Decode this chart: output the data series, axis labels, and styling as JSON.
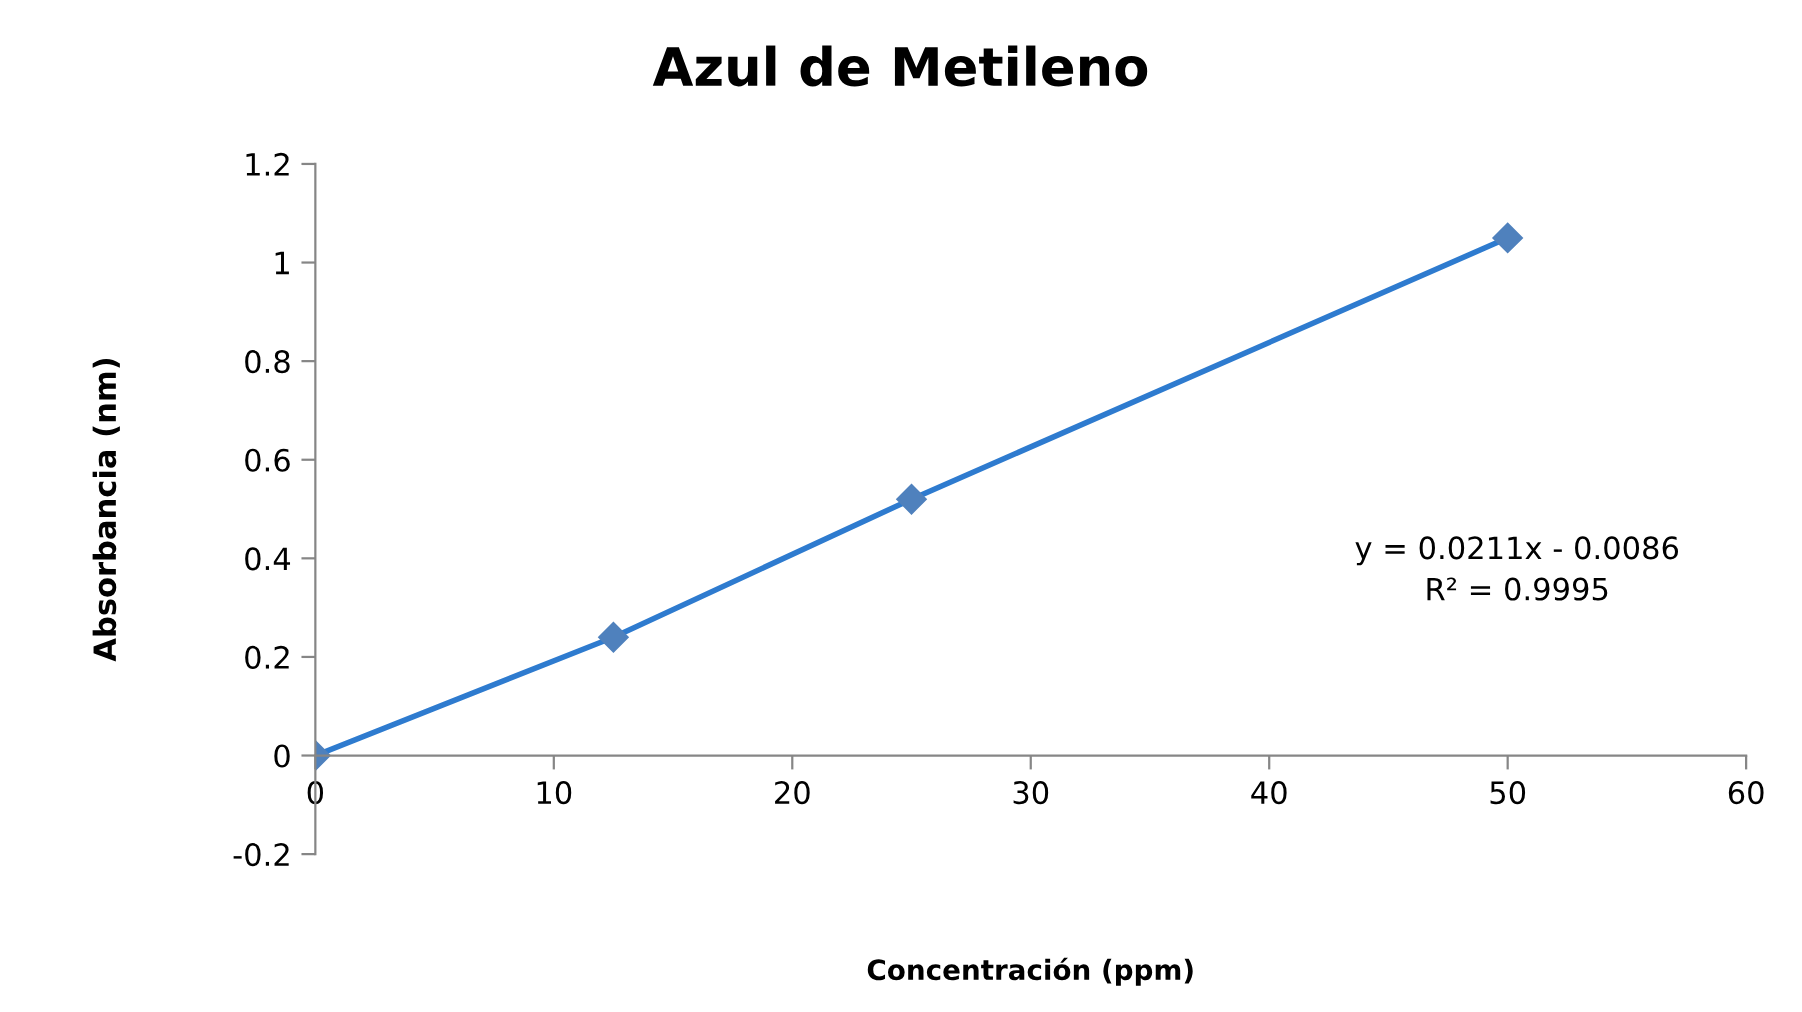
{
  "chart_data": {
    "type": "line",
    "title": "Azul de Metileno",
    "xlabel": "Concentración (ppm)",
    "ylabel": "Absorbancia (nm)",
    "x": [
      0,
      12.5,
      25,
      50
    ],
    "series": [
      {
        "color": "#2e7bcf",
        "values": [
          0,
          0.24,
          0.52,
          1.05
        ]
      }
    ],
    "marker": "diamond",
    "line_style": "solid",
    "grid": false,
    "legend": false,
    "xlim": [
      0,
      60
    ],
    "xticks": [
      0,
      10,
      20,
      30,
      40,
      50,
      60
    ],
    "ylim": [
      -0.2,
      1.2
    ],
    "yticks": [
      -0.2,
      0,
      0.2,
      0.4,
      0.6,
      0.8,
      1,
      1.2
    ],
    "annotations": [
      "y = 0.0211x - 0.0086\nR² = 0.9995"
    ]
  }
}
